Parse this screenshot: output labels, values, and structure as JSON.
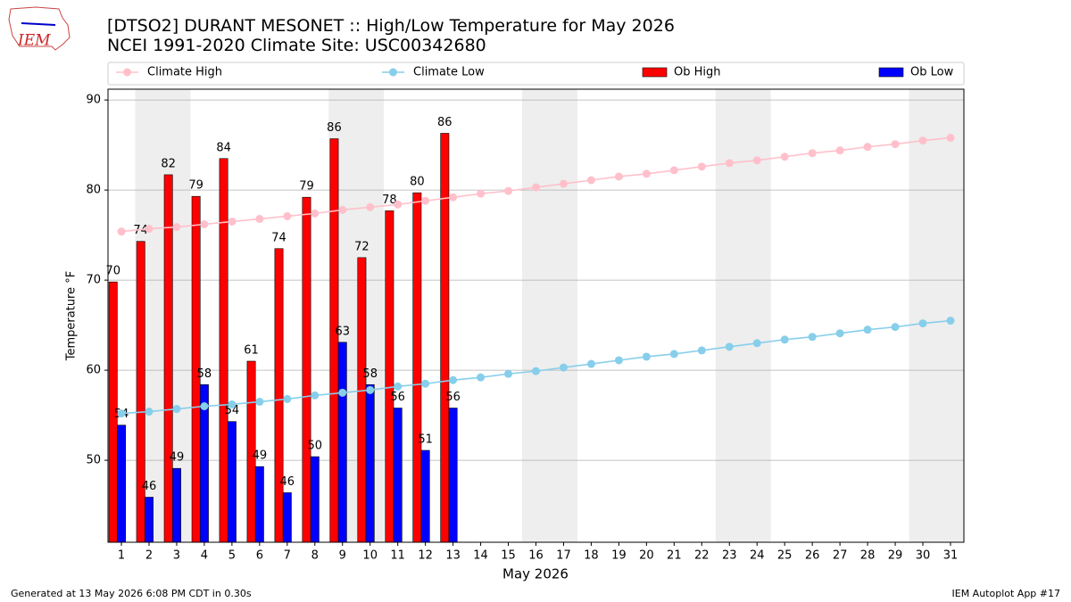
{
  "logo": "IEM",
  "chart_data": {
    "type": "bar",
    "title": "[DTSO2] DURANT MESONET :: High/Low Temperature for May 2026",
    "subtitle": "NCEI 1991-2020 Climate Site: USC00342680",
    "y_label": "Temperature °F",
    "x_label": "May 2026",
    "categories": [
      "1",
      "2",
      "3",
      "4",
      "5",
      "6",
      "7",
      "8",
      "9",
      "10",
      "11",
      "12",
      "13",
      "14",
      "15",
      "16",
      "17",
      "18",
      "19",
      "20",
      "21",
      "22",
      "23",
      "24",
      "25",
      "26",
      "27",
      "28",
      "29",
      "30",
      "31"
    ],
    "series": [
      {
        "name": "Climate High",
        "type": "line",
        "color": "#ffc0cb",
        "values": [
          75.4,
          75.7,
          75.9,
          76.2,
          76.5,
          76.8,
          77.1,
          77.4,
          77.8,
          78.1,
          78.4,
          78.8,
          79.2,
          79.6,
          79.9,
          80.3,
          80.7,
          81.1,
          81.5,
          81.8,
          82.2,
          82.6,
          83.0,
          83.3,
          83.7,
          84.1,
          84.4,
          84.8,
          85.1,
          85.5,
          85.8
        ]
      },
      {
        "name": "Climate Low",
        "type": "line",
        "color": "#87ceeb",
        "values": [
          55.2,
          55.4,
          55.7,
          56.0,
          56.2,
          56.5,
          56.8,
          57.2,
          57.5,
          57.8,
          58.2,
          58.5,
          58.9,
          59.2,
          59.6,
          59.9,
          60.3,
          60.7,
          61.1,
          61.5,
          61.8,
          62.2,
          62.6,
          63.0,
          63.4,
          63.7,
          64.1,
          64.5,
          64.8,
          65.2,
          65.5
        ]
      },
      {
        "name": "Ob High",
        "type": "bar",
        "color": "#ff0000",
        "values": [
          69.8,
          74.3,
          81.7,
          79.3,
          83.5,
          61.0,
          73.5,
          79.2,
          85.7,
          72.5,
          77.7,
          79.7,
          86.3,
          null,
          null,
          null,
          null,
          null,
          null,
          null,
          null,
          null,
          null,
          null,
          null,
          null,
          null,
          null,
          null,
          null,
          null
        ],
        "value_labels": [
          "70",
          "74",
          "82",
          "79",
          "84",
          "61",
          "74",
          "79",
          "86",
          "72",
          "78",
          "80",
          "86",
          null,
          null,
          null,
          null,
          null,
          null,
          null,
          null,
          null,
          null,
          null,
          null,
          null,
          null,
          null,
          null,
          null,
          null
        ]
      },
      {
        "name": "Ob Low",
        "type": "bar",
        "color": "#0000ff",
        "values": [
          53.9,
          45.9,
          49.1,
          58.4,
          54.3,
          49.3,
          46.4,
          50.4,
          63.1,
          58.4,
          55.8,
          51.1,
          55.8,
          null,
          null,
          null,
          null,
          null,
          null,
          null,
          null,
          null,
          null,
          null,
          null,
          null,
          null,
          null,
          null,
          null,
          null
        ],
        "value_labels": [
          "54",
          "46",
          "49",
          "58",
          "54",
          "49",
          "46",
          "50",
          "63",
          "58",
          "56",
          "51",
          "56",
          null,
          null,
          null,
          null,
          null,
          null,
          null,
          null,
          null,
          null,
          null,
          null,
          null,
          null,
          null,
          null,
          null,
          null
        ]
      }
    ],
    "ylim": [
      40.9,
      91.2
    ],
    "yticks": [
      50,
      60,
      70,
      80,
      90
    ],
    "grid": true,
    "legend": "top",
    "footer_left": "Generated at 13 May 2026 6:08 PM CDT in 0.30s",
    "footer_right": "IEM Autoplot App #17"
  }
}
